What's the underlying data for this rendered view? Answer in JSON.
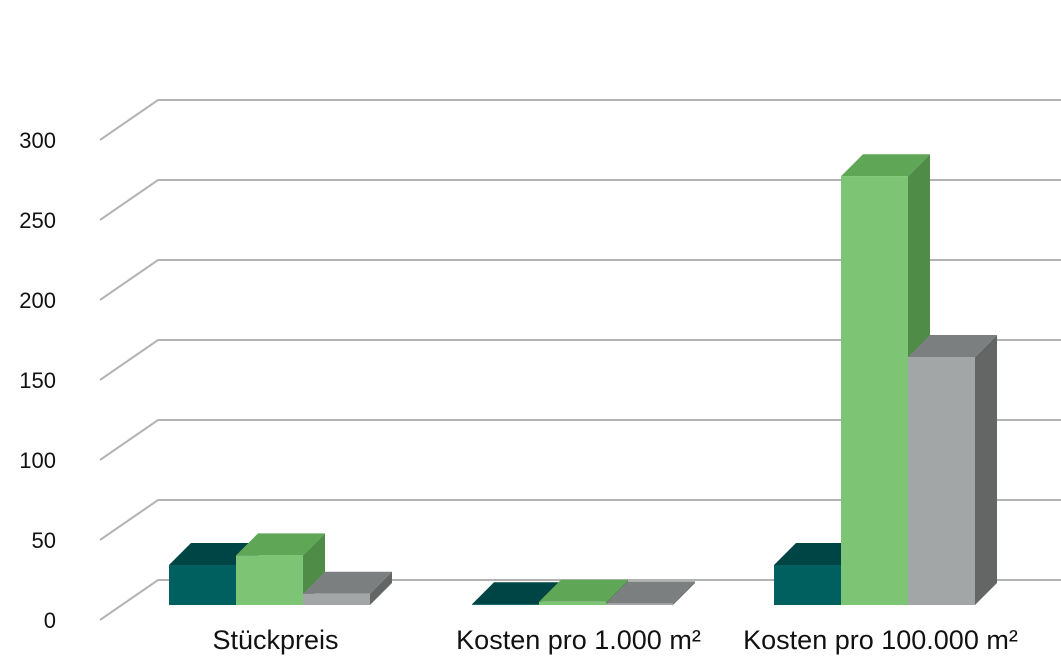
{
  "chart_data": {
    "type": "bar",
    "categories": [
      "Stückpreis",
      "Kosten pro 1.000 m²",
      "Kosten pro 100.000 m²"
    ],
    "series": [
      {
        "values": [
          25,
          0.5,
          25
        ],
        "colors": {
          "front": "#006060",
          "top": "#004545",
          "side": "#004545"
        }
      },
      {
        "values": [
          31,
          2,
          268
        ],
        "colors": {
          "front": "#7DC574",
          "top": "#5FA757",
          "side": "#4E8C48"
        }
      },
      {
        "values": [
          7,
          1,
          155
        ],
        "colors": {
          "front": "#A2A6A6",
          "top": "#7C7F7F",
          "side": "#646666"
        }
      }
    ],
    "ylim": [
      0,
      300
    ],
    "yticks": [
      "0",
      "50",
      "100",
      "150",
      "200",
      "250",
      "300"
    ],
    "grid": true,
    "gridColor": "#B3B3B3"
  }
}
